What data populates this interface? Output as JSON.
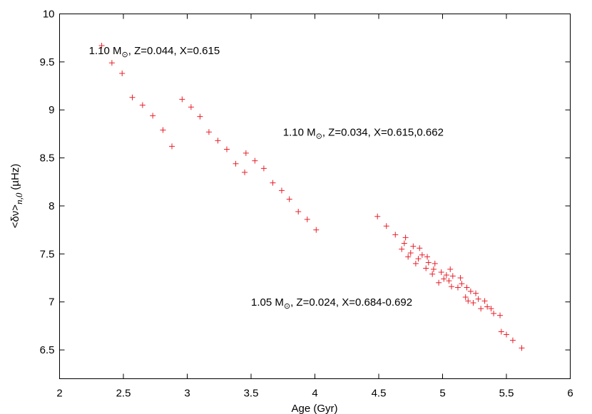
{
  "chart_data": {
    "type": "scatter",
    "title": "",
    "xlabel": "Age (Gyr)",
    "ylabel": "<δν>",
    "ylabel_sub": "n,0",
    "ylabel_unit": "(µHz)",
    "xlim": [
      2,
      6
    ],
    "ylim": [
      6.2,
      10
    ],
    "xticks": [
      2,
      2.5,
      3,
      3.5,
      4,
      4.5,
      5,
      5.5,
      6
    ],
    "xtick_labels": [
      "2",
      "2.5",
      "3",
      "3.5",
      "4",
      "4.5",
      "5",
      "5.5",
      "6"
    ],
    "yticks": [
      6.5,
      7,
      7.5,
      8,
      8.5,
      9,
      9.5,
      10
    ],
    "ytick_labels": [
      "6.5",
      "7",
      "7.5",
      "8",
      "8.5",
      "9",
      "9.5",
      "10"
    ],
    "grid": false,
    "marker": "+",
    "marker_color": "#e8202a",
    "annotations": [
      {
        "mass": "1.10 M",
        "rest": ", Z=0.044, X=0.615",
        "x": 2.23,
        "y": 9.58
      },
      {
        "mass": "1.10 M",
        "rest": ", Z=0.034, X=0.615,0.662",
        "x": 3.75,
        "y": 8.73
      },
      {
        "mass": "1.05 M",
        "rest": ", Z=0.024, X=0.684-0.692",
        "x": 3.5,
        "y": 6.96
      }
    ],
    "series": [
      {
        "points": [
          [
            2.33,
            9.67
          ],
          [
            2.41,
            9.49
          ],
          [
            2.49,
            9.38
          ],
          [
            2.57,
            9.13
          ],
          [
            2.65,
            9.05
          ],
          [
            2.73,
            8.94
          ],
          [
            2.81,
            8.79
          ],
          [
            2.88,
            8.62
          ],
          [
            2.96,
            9.11
          ],
          [
            3.03,
            9.03
          ],
          [
            3.1,
            8.93
          ],
          [
            3.17,
            8.77
          ],
          [
            3.24,
            8.68
          ],
          [
            3.31,
            8.59
          ],
          [
            3.38,
            8.44
          ],
          [
            3.45,
            8.35
          ],
          [
            3.46,
            8.55
          ],
          [
            3.53,
            8.47
          ],
          [
            3.6,
            8.39
          ],
          [
            3.67,
            8.24
          ],
          [
            3.74,
            8.16
          ],
          [
            3.8,
            8.07
          ],
          [
            3.87,
            7.94
          ],
          [
            3.94,
            7.86
          ],
          [
            4.01,
            7.75
          ],
          [
            4.49,
            7.89
          ],
          [
            4.56,
            7.79
          ],
          [
            4.63,
            7.7
          ],
          [
            4.68,
            7.55
          ],
          [
            4.7,
            7.61
          ],
          [
            4.71,
            7.67
          ],
          [
            4.73,
            7.47
          ],
          [
            4.75,
            7.51
          ],
          [
            4.77,
            7.58
          ],
          [
            4.79,
            7.4
          ],
          [
            4.81,
            7.45
          ],
          [
            4.82,
            7.56
          ],
          [
            4.84,
            7.49
          ],
          [
            4.87,
            7.35
          ],
          [
            4.88,
            7.47
          ],
          [
            4.89,
            7.41
          ],
          [
            4.92,
            7.29
          ],
          [
            4.93,
            7.34
          ],
          [
            4.94,
            7.4
          ],
          [
            4.97,
            7.2
          ],
          [
            4.99,
            7.31
          ],
          [
            5.01,
            7.24
          ],
          [
            5.03,
            7.28
          ],
          [
            5.05,
            7.22
          ],
          [
            5.06,
            7.34
          ],
          [
            5.07,
            7.16
          ],
          [
            5.08,
            7.27
          ],
          [
            5.12,
            7.15
          ],
          [
            5.14,
            7.25
          ],
          [
            5.15,
            7.19
          ],
          [
            5.18,
            7.05
          ],
          [
            5.19,
            7.15
          ],
          [
            5.2,
            7.01
          ],
          [
            5.22,
            7.11
          ],
          [
            5.24,
            6.99
          ],
          [
            5.26,
            7.09
          ],
          [
            5.28,
            7.03
          ],
          [
            5.3,
            6.93
          ],
          [
            5.33,
            7.01
          ],
          [
            5.35,
            6.95
          ],
          [
            5.38,
            6.93
          ],
          [
            5.4,
            6.88
          ],
          [
            5.45,
            6.86
          ],
          [
            5.46,
            6.69
          ],
          [
            5.5,
            6.66
          ],
          [
            5.55,
            6.6
          ],
          [
            5.62,
            6.52
          ]
        ]
      }
    ]
  }
}
